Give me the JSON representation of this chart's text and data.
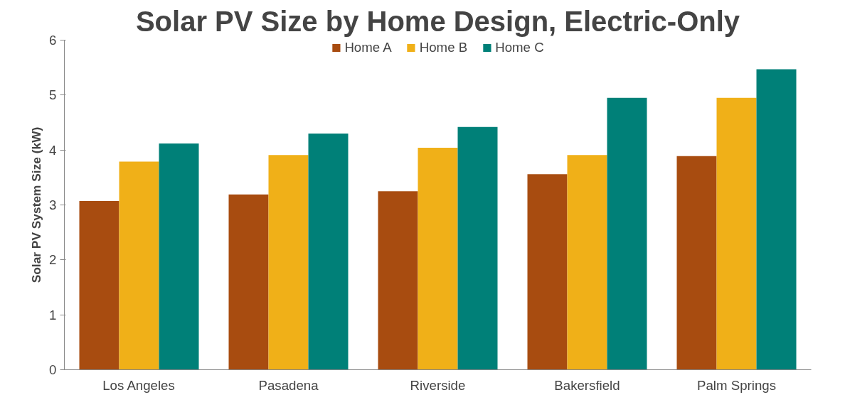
{
  "chart_data": {
    "type": "bar",
    "title": "Solar PV Size by Home Design, Electric-Only",
    "ylabel": "Solar PV System Size (kW)",
    "categories": [
      "Los Angeles",
      "Pasadena",
      "Riverside",
      "Bakersfield",
      "Palm Springs"
    ],
    "series": [
      {
        "name": "Home A",
        "color": "#a84c10",
        "values": [
          3.07,
          3.19,
          3.25,
          3.56,
          3.89
        ]
      },
      {
        "name": "Home B",
        "color": "#f0b018",
        "values": [
          3.79,
          3.91,
          4.04,
          3.91,
          4.95
        ]
      },
      {
        "name": "Home C",
        "color": "#008078",
        "values": [
          4.12,
          4.3,
          4.42,
          4.95,
          5.47
        ]
      }
    ],
    "ylim": [
      0,
      6
    ],
    "yticks": [
      0,
      1,
      2,
      3,
      4,
      5,
      6
    ],
    "grid": false,
    "legend": "top"
  }
}
